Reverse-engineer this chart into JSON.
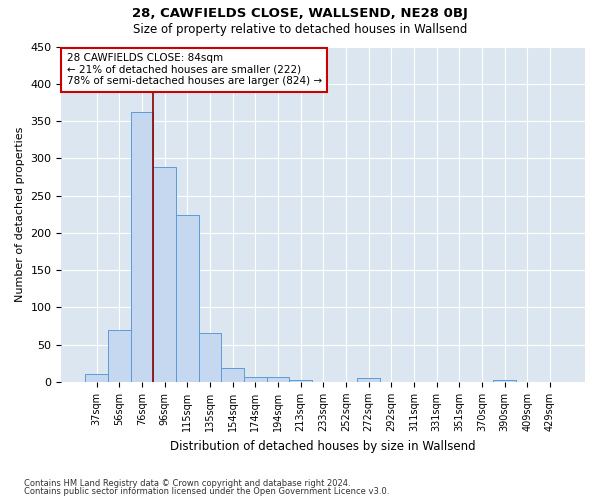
{
  "title": "28, CAWFIELDS CLOSE, WALLSEND, NE28 0BJ",
  "subtitle": "Size of property relative to detached houses in Wallsend",
  "xlabel": "Distribution of detached houses by size in Wallsend",
  "ylabel": "Number of detached properties",
  "bin_labels": [
    "37sqm",
    "56sqm",
    "76sqm",
    "96sqm",
    "115sqm",
    "135sqm",
    "154sqm",
    "174sqm",
    "194sqm",
    "213sqm",
    "233sqm",
    "252sqm",
    "272sqm",
    "292sqm",
    "311sqm",
    "331sqm",
    "351sqm",
    "370sqm",
    "390sqm",
    "409sqm",
    "429sqm"
  ],
  "bar_heights": [
    10,
    70,
    362,
    289,
    224,
    65,
    19,
    7,
    6,
    2,
    0,
    0,
    5,
    0,
    0,
    0,
    0,
    0,
    2,
    0,
    0
  ],
  "bar_color": "#c5d8f0",
  "bar_edge_color": "#5b9bd5",
  "red_line_color": "#8b0000",
  "annotation_text": "28 CAWFIELDS CLOSE: 84sqm\n← 21% of detached houses are smaller (222)\n78% of semi-detached houses are larger (824) →",
  "annotation_box_color": "#ffffff",
  "annotation_box_edge_color": "#cc0000",
  "ylim": [
    0,
    450
  ],
  "yticks": [
    0,
    50,
    100,
    150,
    200,
    250,
    300,
    350,
    400,
    450
  ],
  "footnote1": "Contains HM Land Registry data © Crown copyright and database right 2024.",
  "footnote2": "Contains public sector information licensed under the Open Government Licence v3.0.",
  "fig_bg_color": "#ffffff",
  "plot_bg_color": "#dce6f0"
}
